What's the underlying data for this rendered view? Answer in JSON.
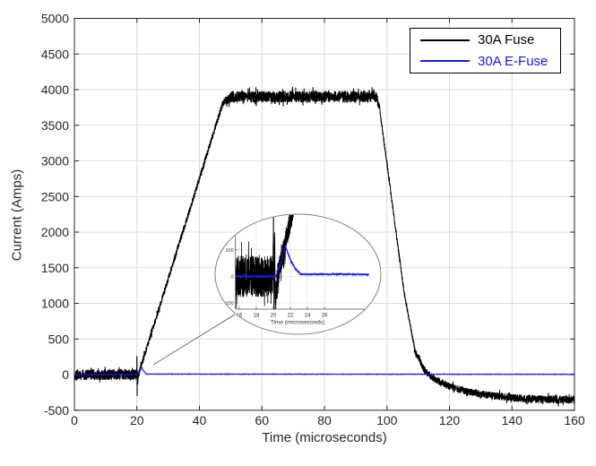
{
  "figure": {
    "background": "#ffffff",
    "axes_color": "#262626",
    "grid_color": "#dcdcdc",
    "text_color": "#262626"
  },
  "chart_data": {
    "type": "line",
    "title": "",
    "xlabel": "Time (microseconds)",
    "ylabel": "Current (Amps)",
    "xlim": [
      0,
      160
    ],
    "ylim": [
      -500,
      5000
    ],
    "xticks": [
      0,
      20,
      40,
      60,
      80,
      100,
      120,
      140,
      160
    ],
    "yticks": [
      -500,
      0,
      500,
      1000,
      1500,
      2000,
      2500,
      3000,
      3500,
      4000,
      4500,
      5000
    ],
    "grid": true,
    "legend": {
      "position": "northeast",
      "entries": [
        {
          "label": "30A Fuse",
          "color": "#000000"
        },
        {
          "label": "30A E-Fuse",
          "color": "#1a1af0"
        }
      ]
    },
    "series": [
      {
        "name": "30A Fuse",
        "color": "#000000",
        "width": 1,
        "base_keypoints": [
          [
            0,
            0
          ],
          [
            19.95,
            0
          ],
          [
            20.02,
            330
          ],
          [
            20.08,
            -255
          ],
          [
            20.15,
            140
          ],
          [
            20.25,
            -90
          ],
          [
            20.5,
            0
          ],
          [
            47.5,
            3810
          ],
          [
            50,
            3900
          ],
          [
            96.5,
            3900
          ],
          [
            97.5,
            3780
          ],
          [
            105.5,
            1150
          ],
          [
            109,
            330
          ],
          [
            112,
            60
          ],
          [
            115,
            -55
          ],
          [
            120,
            -165
          ],
          [
            126,
            -240
          ],
          [
            132,
            -285
          ],
          [
            140,
            -325
          ],
          [
            150,
            -348
          ],
          [
            160,
            -352
          ]
        ],
        "noise_profile": [
          [
            0,
            78
          ],
          [
            19.9,
            78
          ],
          [
            20.5,
            50
          ],
          [
            21,
            45
          ],
          [
            47,
            45
          ],
          [
            50,
            82
          ],
          [
            96.5,
            82
          ],
          [
            98,
            40
          ],
          [
            108,
            40
          ],
          [
            112,
            50
          ],
          [
            120,
            52
          ],
          [
            160,
            56
          ]
        ]
      },
      {
        "name": "30A E-Fuse",
        "color": "#1a1af0",
        "width": 1.1,
        "base_keypoints": [
          [
            0,
            0
          ],
          [
            20.3,
            0
          ],
          [
            20.9,
            55
          ],
          [
            21.4,
            113
          ],
          [
            21.7,
            88
          ],
          [
            22.1,
            55
          ],
          [
            22.6,
            28
          ],
          [
            23.2,
            8
          ],
          [
            160,
            5
          ]
        ],
        "noise_profile": [
          [
            0,
            3.5
          ],
          [
            20.2,
            3.5
          ],
          [
            20.5,
            6
          ],
          [
            21.4,
            7
          ],
          [
            23,
            4
          ],
          [
            23.4,
            3
          ],
          [
            160,
            3
          ]
        ]
      }
    ],
    "inset": {
      "shape": "ellipse",
      "xlabel": "Time (microseconds)",
      "xlim": [
        15.55,
        31.2
      ],
      "ylim": [
        -124,
        220
      ],
      "xticks": [
        16,
        18,
        20,
        22,
        24,
        26
      ],
      "yticks": [
        -100,
        0,
        100
      ],
      "callout_points_at": [
        21.5,
        120
      ]
    }
  }
}
